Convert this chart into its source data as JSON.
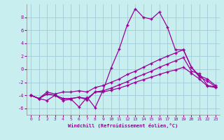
{
  "xlabel": "Windchill (Refroidissement éolien,°C)",
  "bg_color": "#c8eef0",
  "line_color": "#990099",
  "grid_color": "#a0ccd8",
  "xlim": [
    -0.5,
    23.5
  ],
  "ylim": [
    -7,
    10
  ],
  "xticks": [
    0,
    1,
    2,
    3,
    4,
    5,
    6,
    7,
    8,
    9,
    10,
    11,
    12,
    13,
    14,
    15,
    16,
    17,
    18,
    19,
    20,
    21,
    22,
    23
  ],
  "yticks": [
    -6,
    -4,
    -2,
    0,
    2,
    4,
    6,
    8
  ],
  "series1_x": [
    0,
    1,
    2,
    3,
    4,
    5,
    6,
    7,
    8,
    9,
    10,
    11,
    12,
    13,
    14,
    15,
    16,
    17,
    18,
    19,
    20,
    21,
    22,
    23
  ],
  "series1_y": [
    -4.0,
    -4.5,
    -4.8,
    -4.0,
    -4.8,
    -4.6,
    -5.8,
    -4.3,
    -5.9,
    -3.2,
    0.2,
    3.1,
    6.8,
    9.3,
    8.0,
    7.7,
    8.8,
    6.5,
    3.0,
    3.0,
    0.3,
    -1.0,
    -1.5,
    -2.5
  ],
  "series2_x": [
    0,
    1,
    2,
    3,
    4,
    5,
    6,
    7,
    8,
    9,
    10,
    11,
    12,
    13,
    14,
    15,
    16,
    17,
    18,
    19,
    20,
    21,
    22,
    23
  ],
  "series2_y": [
    -4.0,
    -4.5,
    -3.5,
    -3.8,
    -3.5,
    -3.5,
    -3.3,
    -3.5,
    -2.8,
    -2.5,
    -2.0,
    -1.5,
    -0.8,
    -0.3,
    0.3,
    0.9,
    1.5,
    2.0,
    2.5,
    3.0,
    0.3,
    -1.2,
    -1.8,
    -2.7
  ],
  "series3_x": [
    0,
    1,
    2,
    3,
    4,
    5,
    6,
    7,
    8,
    9,
    10,
    11,
    12,
    13,
    14,
    15,
    16,
    17,
    18,
    19,
    20,
    21,
    22,
    23
  ],
  "series3_y": [
    -4.0,
    -4.5,
    -3.8,
    -4.0,
    -4.5,
    -4.5,
    -4.3,
    -4.5,
    -3.5,
    -3.3,
    -2.9,
    -2.4,
    -1.9,
    -1.3,
    -0.8,
    -0.3,
    0.3,
    0.8,
    1.3,
    1.8,
    -0.3,
    -0.7,
    -2.5,
    -2.7
  ],
  "series4_x": [
    0,
    1,
    2,
    3,
    4,
    5,
    6,
    7,
    8,
    9,
    10,
    11,
    12,
    13,
    14,
    15,
    16,
    17,
    18,
    19,
    20,
    21,
    22,
    23
  ],
  "series4_y": [
    -4.0,
    -4.5,
    -3.8,
    -4.0,
    -4.5,
    -4.5,
    -4.3,
    -4.7,
    -3.5,
    -3.5,
    -3.2,
    -2.9,
    -2.5,
    -2.0,
    -1.6,
    -1.2,
    -0.8,
    -0.4,
    -0.1,
    0.3,
    -0.6,
    -1.5,
    -2.6,
    -2.8
  ]
}
